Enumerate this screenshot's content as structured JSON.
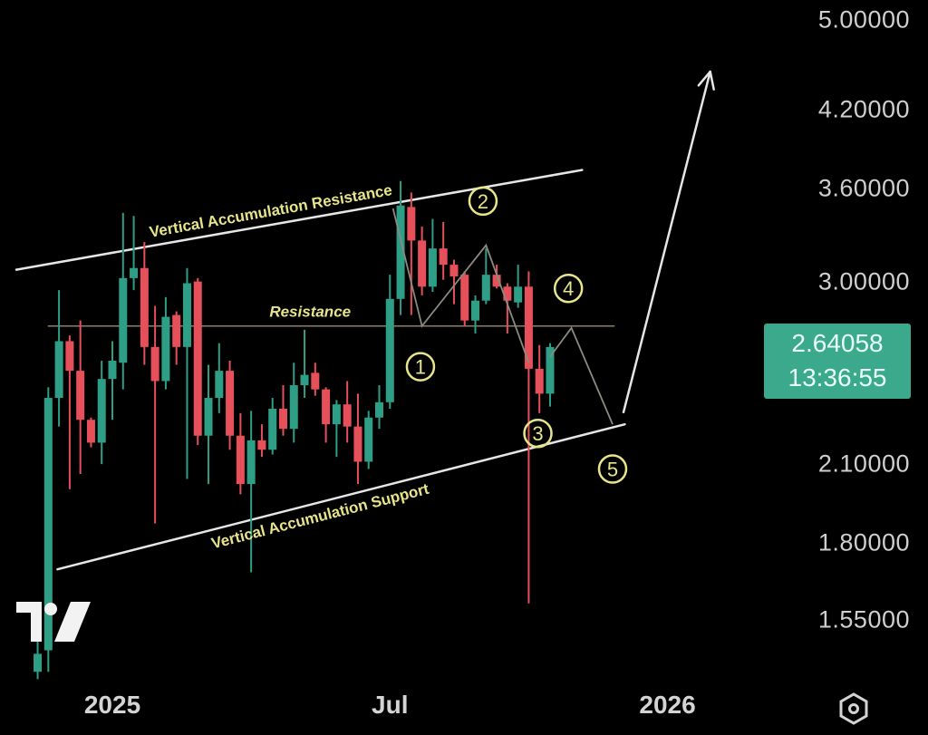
{
  "chart_data": {
    "type": "candlestick",
    "title": "",
    "scale": "log",
    "grid": false,
    "interval": "1W",
    "start_date": "2024-11-18",
    "candle_fields": [
      "open",
      "high",
      "low",
      "close"
    ],
    "candles": [
      [
        1.4,
        1.5,
        1.38,
        1.45
      ],
      [
        1.46,
        2.44,
        1.4,
        2.39
      ],
      [
        2.39,
        2.95,
        2.26,
        2.67
      ],
      [
        2.67,
        2.7,
        2.0,
        2.52
      ],
      [
        2.52,
        2.78,
        2.06,
        2.29
      ],
      [
        2.29,
        2.3,
        2.17,
        2.19
      ],
      [
        2.19,
        2.57,
        2.1,
        2.48
      ],
      [
        2.48,
        2.67,
        2.29,
        2.57
      ],
      [
        2.56,
        3.43,
        2.43,
        3.02
      ],
      [
        3.02,
        3.41,
        2.95,
        3.08
      ],
      [
        3.08,
        3.24,
        2.55,
        2.64
      ],
      [
        2.64,
        2.86,
        1.87,
        2.47
      ],
      [
        2.47,
        2.91,
        2.43,
        2.8
      ],
      [
        2.81,
        2.83,
        2.55,
        2.64
      ],
      [
        2.64,
        3.08,
        2.04,
        2.99
      ],
      [
        3.0,
        3.02,
        2.18,
        2.22
      ],
      [
        2.22,
        2.55,
        2.02,
        2.39
      ],
      [
        2.39,
        2.66,
        2.32,
        2.52
      ],
      [
        2.52,
        2.57,
        2.16,
        2.22
      ],
      [
        2.22,
        2.32,
        1.98,
        2.02
      ],
      [
        2.02,
        2.33,
        1.7,
        2.2
      ],
      [
        2.2,
        2.27,
        2.13,
        2.16
      ],
      [
        2.16,
        2.39,
        2.14,
        2.34
      ],
      [
        2.34,
        2.45,
        2.22,
        2.25
      ],
      [
        2.25,
        2.56,
        2.19,
        2.45
      ],
      [
        2.45,
        2.73,
        2.39,
        2.5
      ],
      [
        2.51,
        2.56,
        2.4,
        2.43
      ],
      [
        2.43,
        2.44,
        2.19,
        2.27
      ],
      [
        2.27,
        2.38,
        2.13,
        2.36
      ],
      [
        2.36,
        2.47,
        2.19,
        2.26
      ],
      [
        2.26,
        2.41,
        2.02,
        2.11
      ],
      [
        2.11,
        2.33,
        2.08,
        2.3
      ],
      [
        2.3,
        2.45,
        2.25,
        2.37
      ],
      [
        2.37,
        3.04,
        2.34,
        2.9
      ],
      [
        2.9,
        3.65,
        2.81,
        3.48
      ],
      [
        3.47,
        3.57,
        2.81,
        3.25
      ],
      [
        3.25,
        3.34,
        2.92,
        2.97
      ],
      [
        2.97,
        3.39,
        2.94,
        3.2
      ],
      [
        3.2,
        3.37,
        3.01,
        3.1
      ],
      [
        3.1,
        3.13,
        2.87,
        3.03
      ],
      [
        3.04,
        3.06,
        2.75,
        2.78
      ],
      [
        2.78,
        2.92,
        2.71,
        2.89
      ],
      [
        2.89,
        3.2,
        2.87,
        3.04
      ],
      [
        3.04,
        3.1,
        2.96,
        2.97
      ],
      [
        2.97,
        2.99,
        2.71,
        2.89
      ],
      [
        2.88,
        3.1,
        2.85,
        2.97
      ],
      [
        2.97,
        3.06,
        1.6,
        2.53
      ],
      [
        2.53,
        2.65,
        2.32,
        2.41
      ],
      [
        2.41,
        2.66,
        2.35,
        2.64
      ]
    ],
    "price_ticks": [
      "5.00000",
      "4.20000",
      "3.60000",
      "3.00000",
      "2.10000",
      "1.80000",
      "1.55000"
    ],
    "time_ticks": [
      {
        "label": "2025",
        "date": "2025-01-06"
      },
      {
        "label": "Jul",
        "date": "2025-07-07"
      },
      {
        "label": "2026",
        "date": "2026-01-05"
      }
    ],
    "last_price": "2.64058",
    "countdown": "13:36:55",
    "colors": {
      "up": "#2e9f86",
      "down": "#e5505a",
      "label_bg": "#3aa98c",
      "annotation_text": "#e8e48a",
      "line": "#e6e6e6",
      "path": "#8a8a80"
    },
    "annotations": {
      "resistance_channel": {
        "from": [
          "2024-11-04",
          3.07
        ],
        "to": [
          "2025-11-10",
          3.73
        ],
        "label": "Vertical Accumulation Resistance",
        "label_at": [
          "2025-01-31",
          3.27
        ]
      },
      "support_channel": {
        "from": [
          "2024-12-01",
          1.71
        ],
        "to": [
          "2025-12-08",
          2.27
        ],
        "label": "Vertical Accumulation Support",
        "label_at": [
          "2025-03-13",
          1.78
        ]
      },
      "resistance_level": {
        "from": "2024-11-25",
        "to": "2025-12-01",
        "price": 2.75,
        "label": "Resistance",
        "label_at": [
          "2025-04-19",
          2.8
        ]
      },
      "wave_path": [
        [
          [
            "2025-07-09",
            3.46
          ],
          [
            "2025-07-28",
            2.75
          ],
          [
            "2025-09-08",
            3.22
          ],
          [
            "2025-10-06",
            2.56
          ]
        ],
        [
          [
            "2025-10-20",
            2.59
          ],
          [
            "2025-11-03",
            2.74
          ],
          [
            "2025-11-30",
            2.27
          ]
        ]
      ],
      "projection_arrow": {
        "from": [
          "2025-12-07",
          2.32
        ],
        "to": [
          "2026-02-02",
          4.52
        ]
      },
      "wave_labels": [
        {
          "label": "1",
          "at": [
            "2025-07-27",
            2.54
          ]
        },
        {
          "label": "2",
          "at": [
            "2025-09-06",
            3.51
          ]
        },
        {
          "label": "3",
          "at": [
            "2025-10-12",
            2.23
          ]
        },
        {
          "label": "4",
          "at": [
            "2025-11-01",
            2.96
          ]
        },
        {
          "label": "5",
          "at": [
            "2025-11-30",
            2.08
          ]
        }
      ]
    }
  },
  "toolbar": {
    "settings_icon": "hexagon-settings-icon",
    "logo": "TV"
  }
}
